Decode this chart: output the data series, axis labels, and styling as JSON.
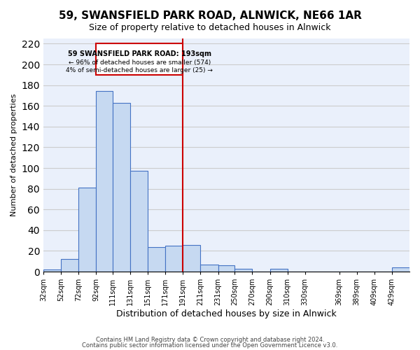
{
  "title": "59, SWANSFIELD PARK ROAD, ALNWICK, NE66 1AR",
  "subtitle": "Size of property relative to detached houses in Alnwick",
  "xlabel": "Distribution of detached houses by size in Alnwick",
  "ylabel": "Number of detached properties",
  "bar_edges": [
    32,
    52,
    72,
    92,
    111,
    131,
    151,
    171,
    191,
    211,
    231,
    250,
    270,
    290,
    310,
    330,
    369,
    389,
    409,
    429
  ],
  "bar_heights": [
    2,
    12,
    81,
    174,
    163,
    97,
    24,
    25,
    26,
    7,
    6,
    3,
    0,
    3,
    0,
    0,
    0,
    0,
    0,
    4
  ],
  "bar_color": "#c6d9f1",
  "bar_edge_color": "#4472c4",
  "property_line_x": 191,
  "property_line_color": "#cc0000",
  "annotation_title": "59 SWANSFIELD PARK ROAD: 193sqm",
  "annotation_line1": "← 96% of detached houses are smaller (574)",
  "annotation_line2": "4% of semi-detached houses are larger (25) →",
  "annotation_box_color": "#ffffff",
  "annotation_box_edge_color": "#cc0000",
  "ylim": [
    0,
    225
  ],
  "yticks": [
    0,
    20,
    40,
    60,
    80,
    100,
    120,
    140,
    160,
    180,
    200,
    220
  ],
  "tick_labels": [
    "32sqm",
    "52sqm",
    "72sqm",
    "92sqm",
    "111sqm",
    "131sqm",
    "151sqm",
    "171sqm",
    "191sqm",
    "211sqm",
    "231sqm",
    "250sqm",
    "270sqm",
    "290sqm",
    "310sqm",
    "330sqm",
    "369sqm",
    "389sqm",
    "409sqm",
    "429sqm"
  ],
  "footnote1": "Contains HM Land Registry data © Crown copyright and database right 2024.",
  "footnote2": "Contains public sector information licensed under the Open Government Licence v3.0.",
  "grid_color": "#cccccc",
  "background_color": "#eaf0fb"
}
